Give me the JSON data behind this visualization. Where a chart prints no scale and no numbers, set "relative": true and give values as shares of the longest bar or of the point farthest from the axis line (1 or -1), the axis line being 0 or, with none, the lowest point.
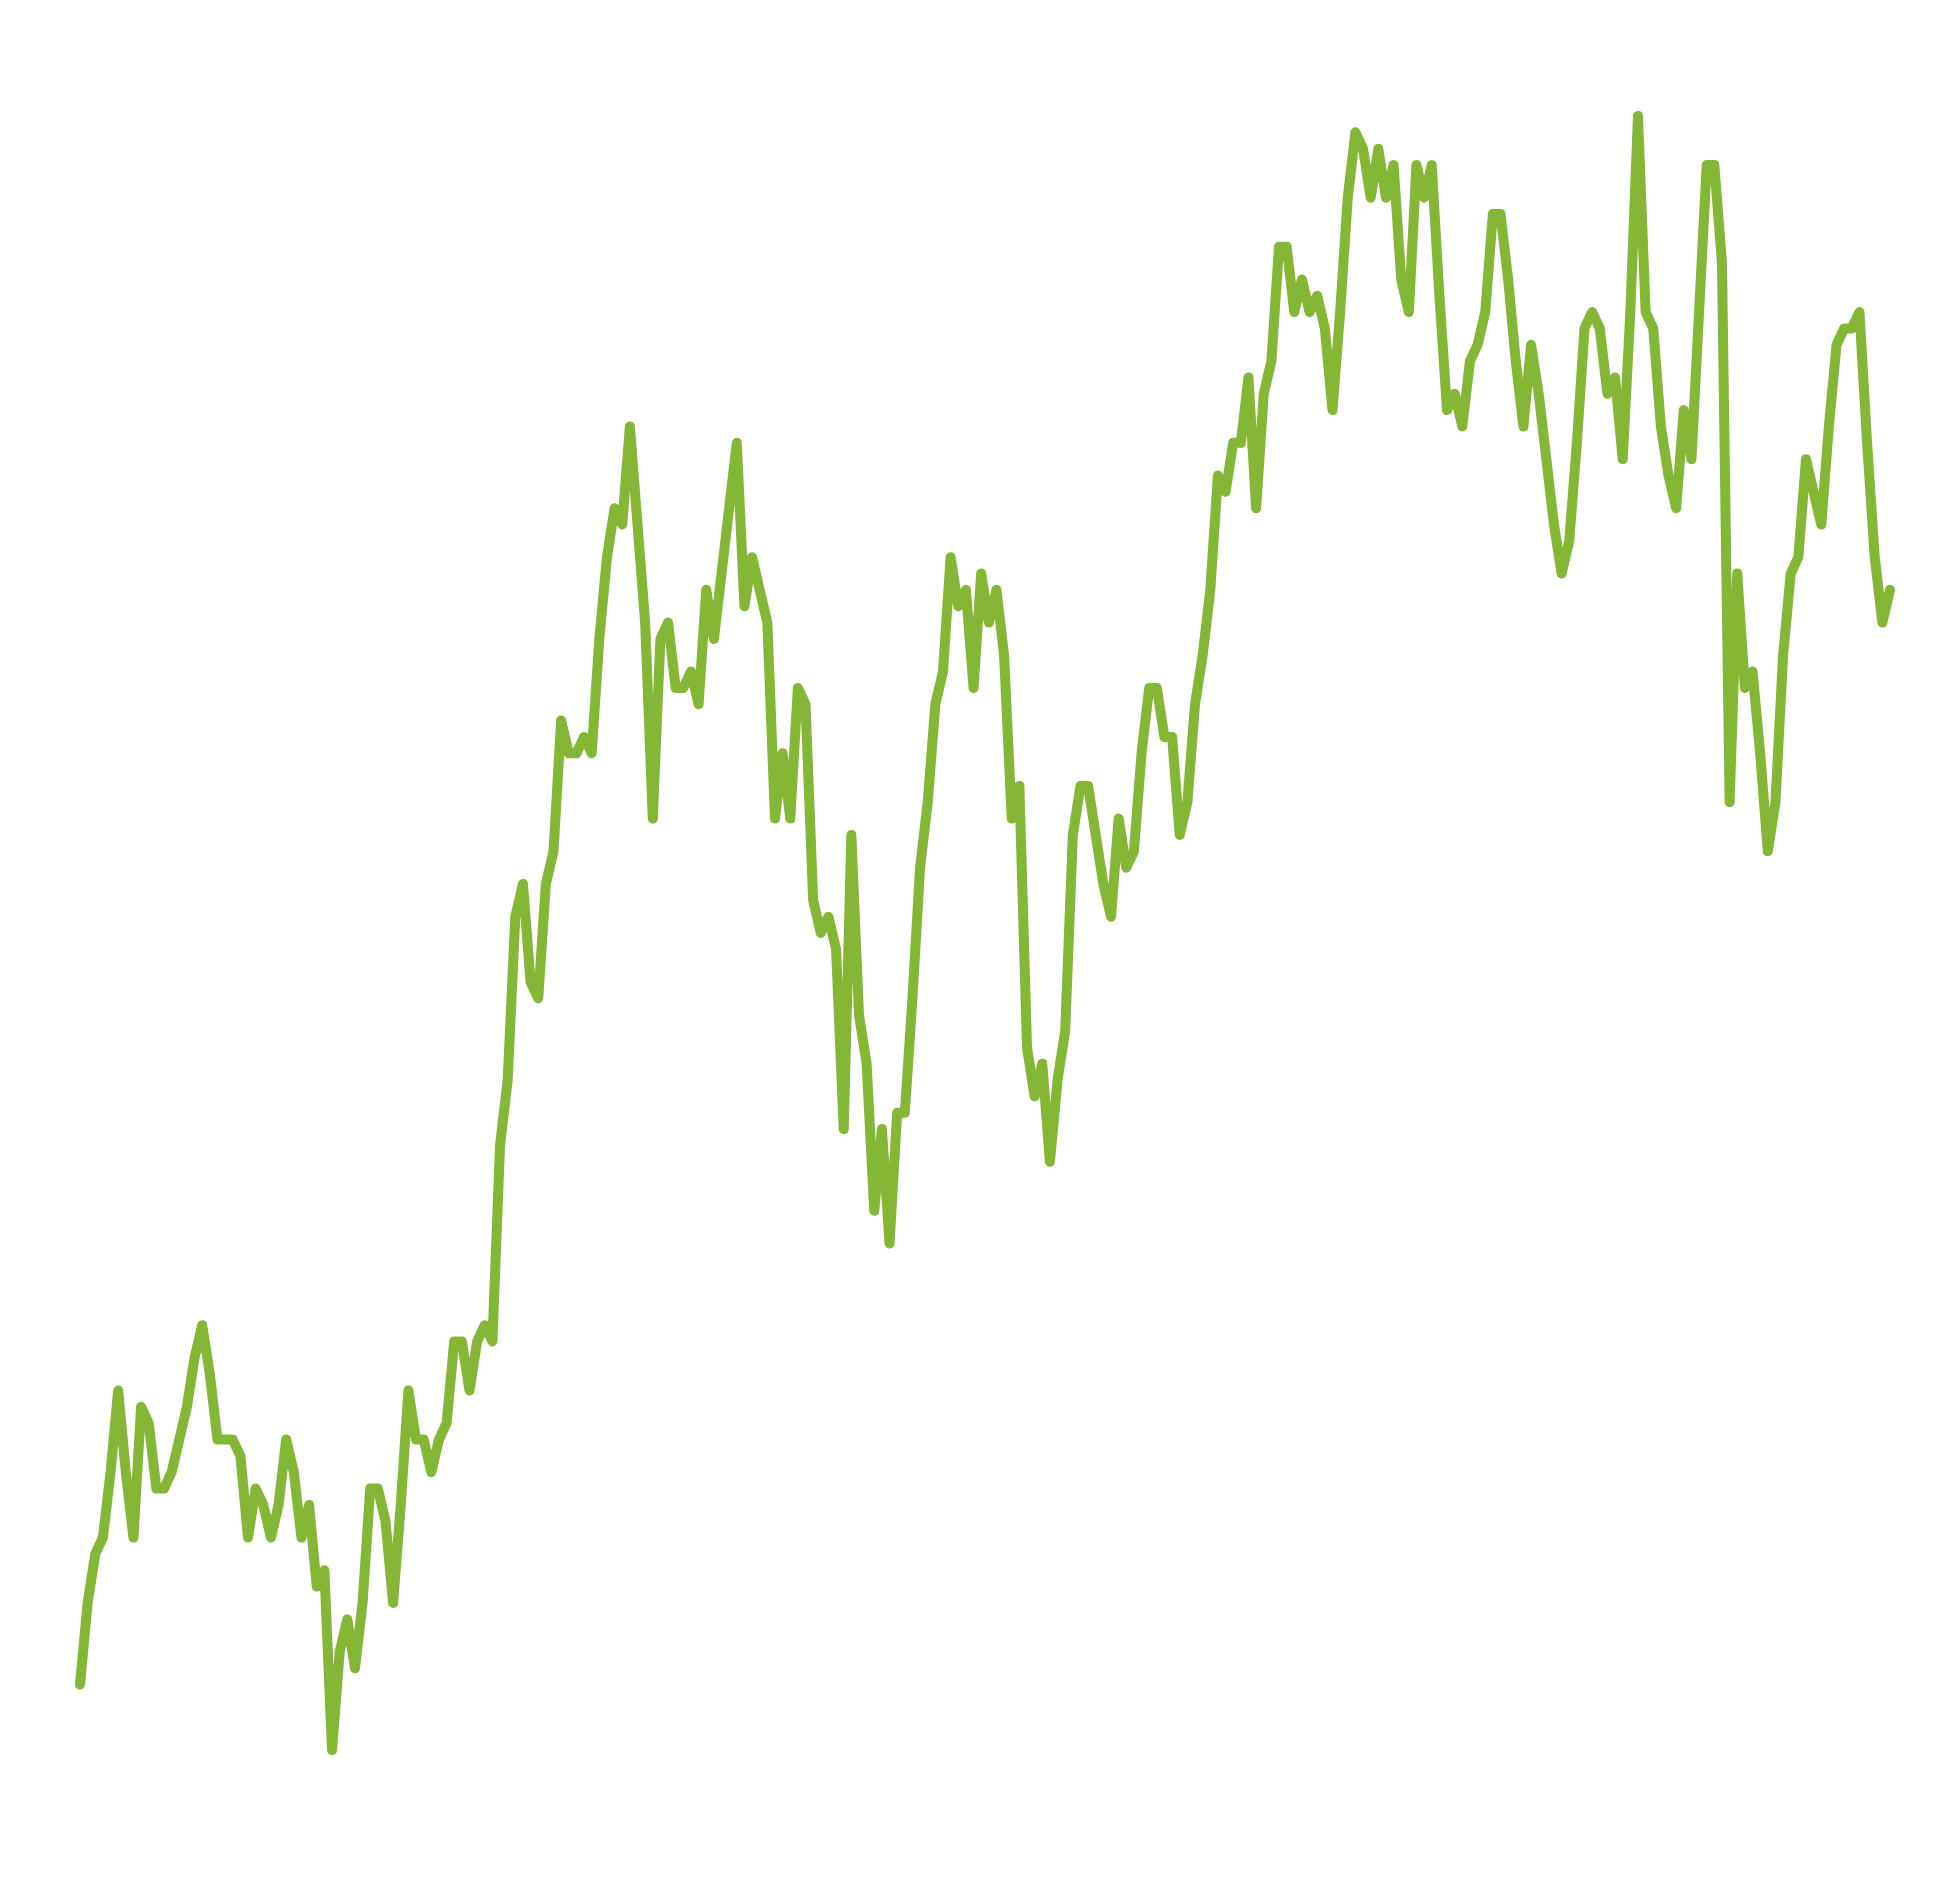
{
  "chart_data": {
    "type": "line",
    "relative": true,
    "categories": [
      null,
      null,
      null,
      null,
      null,
      null,
      null,
      null,
      null,
      null,
      null,
      null,
      null,
      null,
      null,
      null,
      null,
      null,
      null,
      null,
      null,
      null,
      null,
      null,
      null,
      null,
      null,
      null,
      null,
      null,
      null,
      null,
      null,
      null,
      null,
      null,
      null,
      null,
      null,
      null,
      null,
      null,
      null,
      null,
      null,
      null,
      null,
      null,
      null,
      null,
      null,
      null,
      null,
      null,
      null,
      null,
      null,
      null,
      null,
      null,
      null,
      null,
      null,
      null,
      null,
      null,
      null,
      null,
      null,
      null,
      null,
      null,
      null,
      null,
      null,
      null,
      null,
      null,
      null,
      null,
      null,
      null,
      null,
      null,
      null,
      null,
      null,
      null,
      null,
      null,
      null,
      null,
      null,
      null,
      null,
      null,
      null,
      null,
      null,
      null,
      null,
      null,
      null,
      null,
      null,
      null,
      null,
      null,
      null,
      null,
      null,
      null,
      null,
      null,
      null,
      null,
      null,
      null,
      null,
      null,
      null,
      null,
      null,
      null,
      null,
      null,
      null,
      null,
      null,
      null,
      null,
      null,
      null,
      null,
      null,
      null,
      null,
      null,
      null,
      null,
      null,
      null,
      null,
      null,
      null,
      null,
      null,
      null,
      null,
      null,
      null,
      null,
      null,
      null,
      null,
      null,
      null,
      null,
      null,
      null,
      null,
      null,
      null,
      null,
      null,
      null,
      null,
      null,
      null,
      null,
      null,
      null,
      null,
      null,
      null,
      null,
      null,
      null,
      null,
      null,
      null,
      null,
      null,
      null,
      null,
      null,
      null,
      null,
      null,
      null,
      null,
      null,
      null,
      null,
      null,
      null,
      null,
      null,
      null,
      null,
      null,
      null,
      null,
      null,
      null,
      null,
      null,
      null,
      null,
      null,
      null,
      null,
      null,
      null,
      null,
      null,
      null,
      null,
      null,
      null,
      null,
      null,
      null,
      null,
      null,
      null,
      null,
      null,
      null,
      null,
      null,
      null,
      null,
      null,
      null,
      null,
      null,
      null
    ],
    "series": [
      {
        "color": "#84b735",
        "values": [
          0.04,
          0.09,
          0.12,
          0.13,
          0.17,
          0.22,
          0.17,
          0.13,
          0.21,
          0.2,
          0.16,
          0.16,
          0.17,
          0.19,
          0.21,
          0.24,
          0.26,
          0.23,
          0.19,
          0.19,
          0.19,
          0.18,
          0.13,
          0.16,
          0.15,
          0.13,
          0.15,
          0.19,
          0.17,
          0.13,
          0.15,
          0.1,
          0.11,
          0,
          0.06,
          0.08,
          0.05,
          0.09,
          0.16,
          0.16,
          0.14,
          0.09,
          0.15,
          0.22,
          0.19,
          0.19,
          0.17,
          0.19,
          0.2,
          0.25,
          0.25,
          0.22,
          0.25,
          0.26,
          0.25,
          0.37,
          0.41,
          0.51,
          0.53,
          0.47,
          0.46,
          0.53,
          0.55,
          0.63,
          0.61,
          0.61,
          0.62,
          0.61,
          0.68,
          0.73,
          0.76,
          0.75,
          0.81,
          0.75,
          0.69,
          0.57,
          0.68,
          0.69,
          0.65,
          0.65,
          0.66,
          0.64,
          0.71,
          0.68,
          0.72,
          0.76,
          0.8,
          0.7,
          0.73,
          0.71,
          0.69,
          0.57,
          0.61,
          0.57,
          0.65,
          0.64,
          0.52,
          0.5,
          0.51,
          0.49,
          0.38,
          0.56,
          0.45,
          0.42,
          0.33,
          0.38,
          0.31,
          0.39,
          0.39,
          0.46,
          0.54,
          0.58,
          0.64,
          0.66,
          0.73,
          0.7,
          0.71,
          0.65,
          0.72,
          0.69,
          0.71,
          0.67,
          0.57,
          0.59,
          0.43,
          0.4,
          0.42,
          0.36,
          0.41,
          0.44,
          0.56,
          0.59,
          0.59,
          0.56,
          0.53,
          0.51,
          0.57,
          0.54,
          0.55,
          0.61,
          0.65,
          0.65,
          0.62,
          0.62,
          0.56,
          0.58,
          0.64,
          0.67,
          0.71,
          0.78,
          0.77,
          0.8,
          0.8,
          0.84,
          0.76,
          0.83,
          0.85,
          0.92,
          0.92,
          0.88,
          0.9,
          0.88,
          0.89,
          0.87,
          0.82,
          0.88,
          0.95,
          0.99,
          0.98,
          0.95,
          0.98,
          0.95,
          0.97,
          0.9,
          0.88,
          0.97,
          0.95,
          0.97,
          0.89,
          0.82,
          0.83,
          0.81,
          0.85,
          0.86,
          0.88,
          0.94,
          0.94,
          0.9,
          0.85,
          0.81,
          0.86,
          0.83,
          0.79,
          0.75,
          0.72,
          0.74,
          0.8,
          0.87,
          0.88,
          0.87,
          0.83,
          0.84,
          0.79,
          0.88,
          1,
          0.88,
          0.87,
          0.81,
          0.78,
          0.76,
          0.82,
          0.79,
          0.88,
          0.97,
          0.97,
          0.91,
          0.58,
          0.72,
          0.65,
          0.66,
          0.61,
          0.55,
          0.58,
          0.67,
          0.72,
          0.73,
          0.79,
          0.77,
          0.75,
          0.81,
          0.86,
          0.87,
          0.87,
          0.88,
          0.8,
          0.73,
          0.69,
          0.71
        ]
      }
    ]
  }
}
